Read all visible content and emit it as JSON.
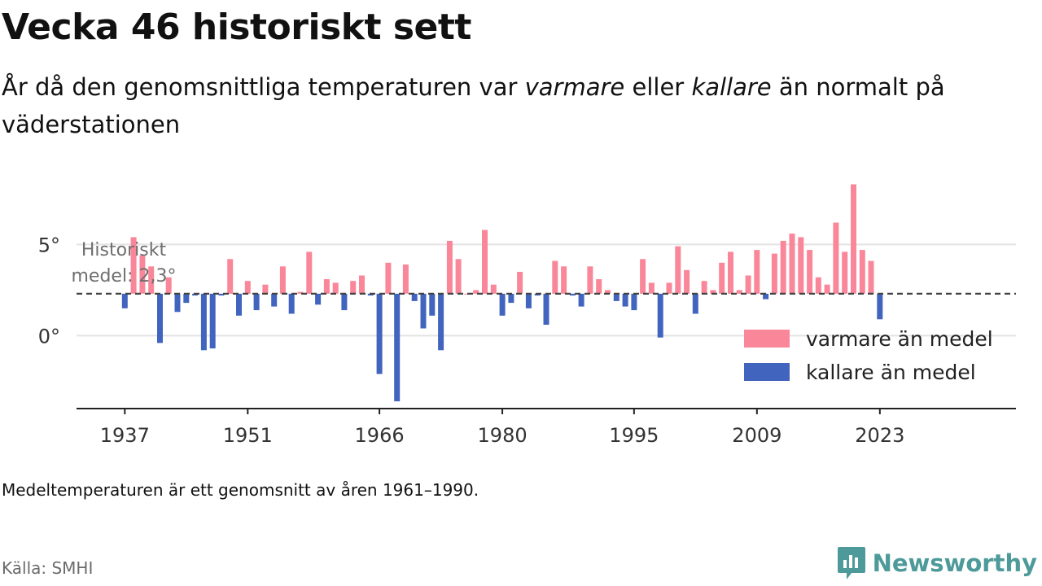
{
  "header": {
    "title": "Vecka 46 historiskt sett",
    "subtitle_parts": [
      "År då den genomsnittliga temperaturen var ",
      "varmare",
      " eller ",
      "kallare",
      " än normalt på väderstationen"
    ]
  },
  "footer": {
    "note": "Medeltemperaturen är ett genomsnitt av åren 1961–1990.",
    "source": "Källa: SMHI",
    "brand": "Newsworthy"
  },
  "colors": {
    "warmer": "#f98799",
    "colder": "#4164be",
    "brand": "#4e9a9a"
  },
  "chart_data": {
    "type": "bar",
    "title": "Vecka 46 historiskt sett",
    "baseline": 2.3,
    "baseline_label": [
      "Historiskt",
      "medel: 2,3°"
    ],
    "x_ticks": [
      1937,
      1951,
      1966,
      1980,
      1995,
      2009,
      2023
    ],
    "y_ticks": [
      {
        "value": 0,
        "label": "0°"
      },
      {
        "value": 5,
        "label": "5°"
      }
    ],
    "ylim": [
      -4.0,
      8.5
    ],
    "xlim": [
      1931.5,
      2038.5
    ],
    "grid": true,
    "legend": {
      "position": "right",
      "items": [
        {
          "key": "warmer",
          "label": "varmare än medel"
        },
        {
          "key": "colder",
          "label": "kallare än medel"
        }
      ]
    },
    "years": [
      1937,
      1938,
      1939,
      1940,
      1941,
      1942,
      1943,
      1944,
      1945,
      1946,
      1947,
      1948,
      1949,
      1950,
      1951,
      1952,
      1953,
      1954,
      1955,
      1956,
      1957,
      1958,
      1959,
      1960,
      1961,
      1962,
      1963,
      1964,
      1965,
      1966,
      1967,
      1968,
      1969,
      1970,
      1971,
      1972,
      1973,
      1974,
      1975,
      1976,
      1977,
      1978,
      1979,
      1980,
      1981,
      1982,
      1983,
      1984,
      1985,
      1986,
      1987,
      1988,
      1989,
      1990,
      1991,
      1992,
      1993,
      1994,
      1995,
      1996,
      1997,
      1998,
      1999,
      2000,
      2001,
      2002,
      2003,
      2004,
      2005,
      2006,
      2007,
      2008,
      2009,
      2010,
      2011,
      2012,
      2013,
      2014,
      2015,
      2016,
      2017,
      2018,
      2019,
      2020,
      2021,
      2022,
      2023
    ],
    "values": [
      1.5,
      5.4,
      4.4,
      3.8,
      -0.4,
      3.2,
      1.3,
      1.8,
      2.2,
      -0.8,
      -0.7,
      2.2,
      4.2,
      1.1,
      3.0,
      1.4,
      2.8,
      1.6,
      3.8,
      1.2,
      2.4,
      4.6,
      1.7,
      3.1,
      2.9,
      1.4,
      3.0,
      3.3,
      2.2,
      -2.1,
      4.0,
      -3.6,
      3.9,
      1.9,
      0.4,
      1.1,
      -0.8,
      5.2,
      4.2,
      2.3,
      2.5,
      5.8,
      2.8,
      1.1,
      1.8,
      3.5,
      1.5,
      2.2,
      0.6,
      4.1,
      3.8,
      2.2,
      1.6,
      3.8,
      3.1,
      2.5,
      1.9,
      1.6,
      1.4,
      4.2,
      2.9,
      -0.1,
      2.9,
      4.9,
      3.6,
      1.2,
      3.0,
      2.5,
      4.0,
      4.6,
      2.5,
      3.3,
      4.7,
      2.0,
      4.5,
      5.2,
      5.6,
      5.4,
      4.7,
      3.2,
      2.8,
      6.2,
      4.6,
      8.3,
      4.7,
      4.1,
      0.9
    ]
  }
}
